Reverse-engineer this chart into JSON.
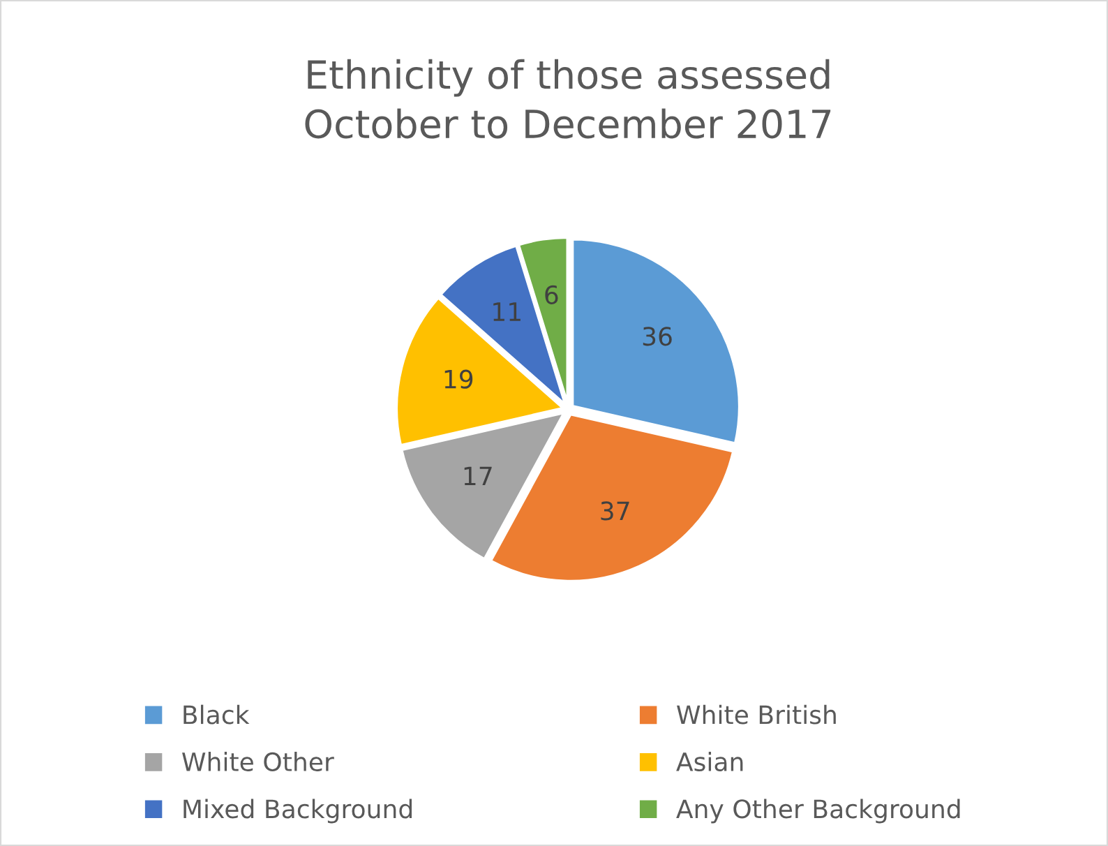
{
  "chart_data": {
    "type": "pie",
    "title": "Ethnicity of those assessed\nOctober to December 2017",
    "categories": [
      "Black",
      "White British",
      "White Other",
      "Asian",
      "Mixed Background",
      "Any Other Background"
    ],
    "values": [
      36,
      37,
      17,
      19,
      11,
      6
    ],
    "colors": [
      "#5b9bd5",
      "#ed7d31",
      "#a5a5a5",
      "#ffc000",
      "#4472c4",
      "#70ad47"
    ],
    "data_labels": true,
    "legend": "bottom"
  }
}
